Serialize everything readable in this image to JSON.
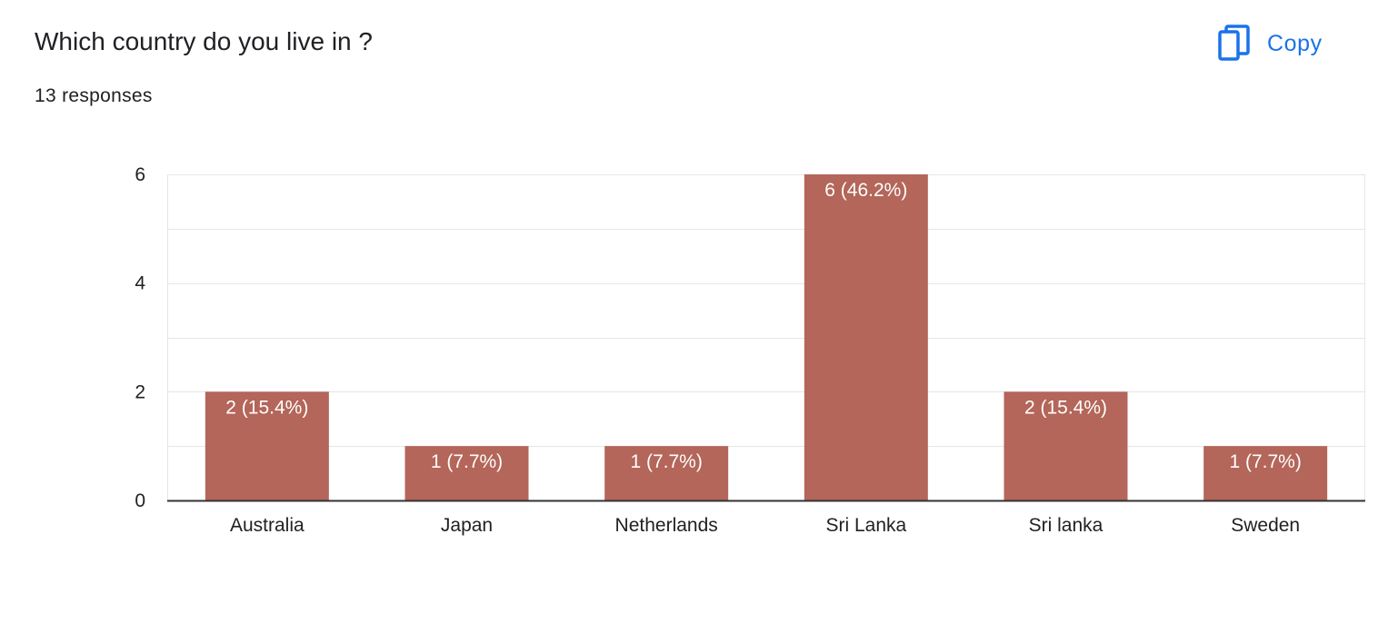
{
  "question": {
    "title": "Which country do you live in ?",
    "responses": "13 responses"
  },
  "toolbar": {
    "copy_label": "Copy",
    "copy_icon": "copy-icon"
  },
  "colors": {
    "bar": "#b36659",
    "accent": "#1a73e8",
    "text": "#202124",
    "grid": "#e6e6e6",
    "axis": "#333333"
  },
  "chart_data": {
    "type": "bar",
    "categories": [
      "Australia",
      "Japan",
      "Netherlands",
      "Sri Lanka",
      "Sri lanka",
      "Sweden"
    ],
    "values": [
      2,
      1,
      1,
      6,
      2,
      1
    ],
    "data_labels": [
      "2 (15.4%)",
      "1 (7.7%)",
      "1 (7.7%)",
      "6 (46.2%)",
      "2 (15.4%)",
      "1 (7.7%)"
    ],
    "y_ticks": [
      "0",
      "2",
      "4",
      "6"
    ],
    "ylim": [
      0,
      6
    ],
    "title": "",
    "xlabel": "",
    "ylabel": "",
    "grid": true,
    "legend": "none"
  }
}
